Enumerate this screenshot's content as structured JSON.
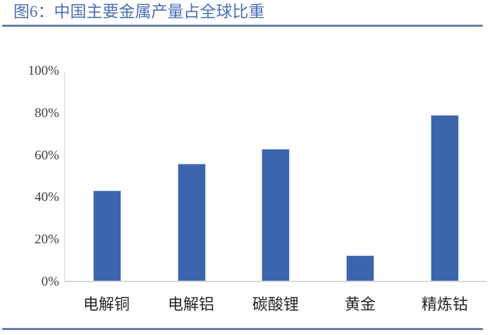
{
  "figure": {
    "title": "图6：中国主要金属产量占全球比重",
    "title_color": "#4B70B6",
    "divider_color": "#6580AD"
  },
  "chart_data": {
    "type": "bar",
    "title": "中国主要金属产量占全球比重",
    "categories": [
      "电解铜",
      "电解铝",
      "碳酸锂",
      "黄金",
      "精炼钴"
    ],
    "values": [
      43,
      56,
      63,
      12,
      79
    ],
    "unit": "%",
    "xlabel": "",
    "ylabel": "",
    "ylim": [
      0,
      100
    ],
    "y_ticks": [
      "0%",
      "20%",
      "40%",
      "60%",
      "80%",
      "100%"
    ],
    "bar_color": "#3D65AD",
    "axis_color": "#D9D9D9",
    "grid": false,
    "legend_position": "none"
  }
}
